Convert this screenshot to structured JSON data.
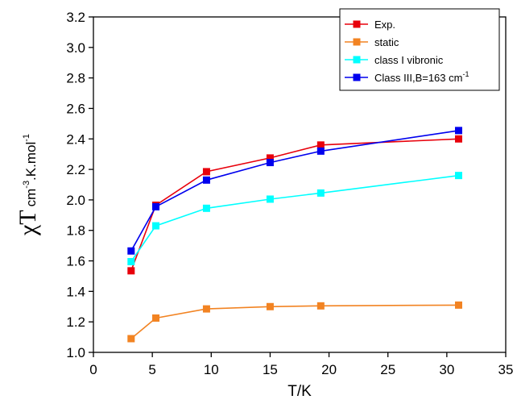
{
  "chart_data": {
    "type": "line",
    "xlabel": "T/K",
    "ylabel": {
      "main": "χT",
      "unit_prefix": "cm",
      "unit_exp1": "-3",
      "unit_mid": ".K.mol",
      "unit_exp2": "-1"
    },
    "xlim": [
      0,
      35
    ],
    "ylim": [
      1.0,
      3.2
    ],
    "x_ticks": [
      0,
      5,
      10,
      15,
      20,
      25,
      30,
      35
    ],
    "y_ticks": [
      1.0,
      1.2,
      1.4,
      1.6,
      1.8,
      2.0,
      2.2,
      2.4,
      2.6,
      2.8,
      3.0,
      3.2
    ],
    "grid": false,
    "legend_position": "top-right",
    "series": [
      {
        "name": "Exp.",
        "color": "#e8000b",
        "points": [
          [
            3.2,
            1.535
          ],
          [
            5.3,
            1.965
          ],
          [
            9.6,
            2.185
          ],
          [
            15.0,
            2.275
          ],
          [
            19.3,
            2.36
          ],
          [
            31.0,
            2.4
          ]
        ]
      },
      {
        "name": "static",
        "color": "#f28322",
        "points": [
          [
            3.2,
            1.09
          ],
          [
            5.3,
            1.225
          ],
          [
            9.6,
            1.285
          ],
          [
            15.0,
            1.3
          ],
          [
            19.3,
            1.305
          ],
          [
            31.0,
            1.31
          ]
        ]
      },
      {
        "name": "class I  vibronic",
        "color": "#00ffff",
        "points": [
          [
            3.2,
            1.595
          ],
          [
            5.3,
            1.83
          ],
          [
            9.6,
            1.945
          ],
          [
            15.0,
            2.005
          ],
          [
            19.3,
            2.045
          ],
          [
            31.0,
            2.16
          ]
        ]
      },
      {
        "name": "Class III,B=163 cm",
        "name_sup": "-1",
        "color": "#0000ee",
        "points": [
          [
            3.2,
            1.665
          ],
          [
            5.3,
            1.955
          ],
          [
            9.6,
            2.13
          ],
          [
            15.0,
            2.245
          ],
          [
            19.3,
            2.32
          ],
          [
            31.0,
            2.455
          ]
        ]
      }
    ]
  }
}
